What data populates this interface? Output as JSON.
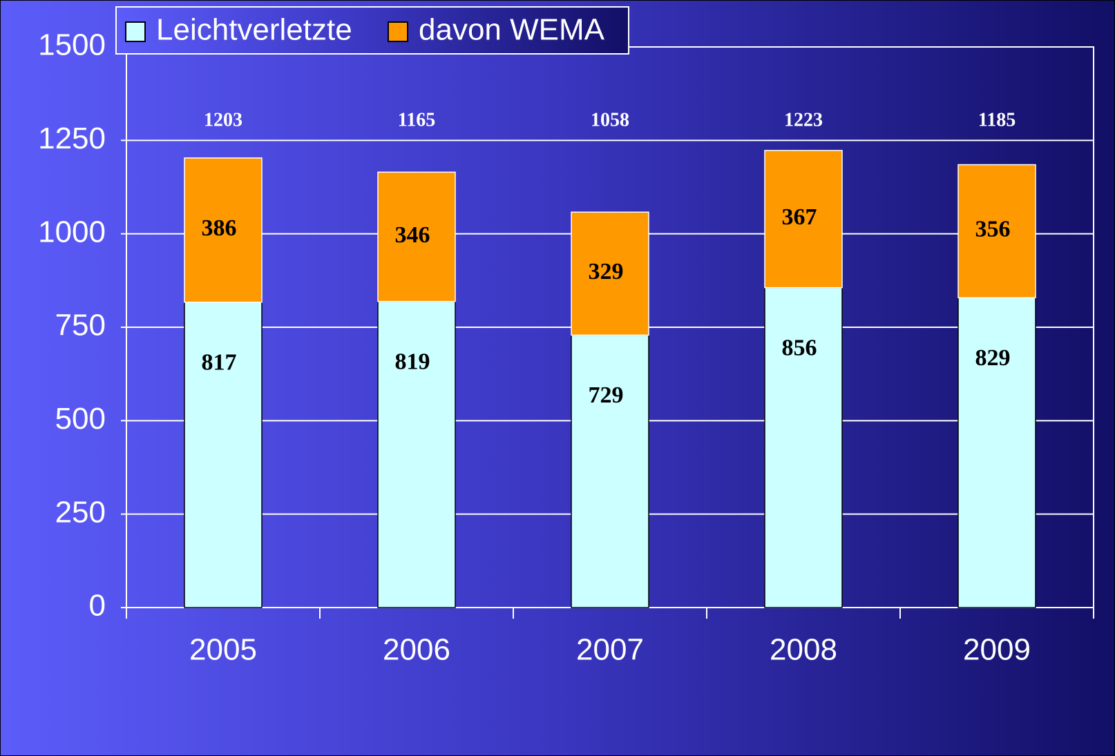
{
  "chart_data": {
    "type": "stacked_bar",
    "categories": [
      "2005",
      "2006",
      "2007",
      "2008",
      "2009"
    ],
    "series": [
      {
        "name": "Leichtverletzte",
        "color": "#ccffff",
        "values": [
          817,
          819,
          729,
          856,
          829
        ]
      },
      {
        "name": "davon WEMA",
        "color": "#ff9900",
        "values": [
          386,
          346,
          329,
          367,
          356
        ]
      }
    ],
    "totals": [
      1203,
      1165,
      1058,
      1223,
      1185
    ],
    "ylim": [
      0,
      1500
    ],
    "yticks": [
      0,
      250,
      500,
      750,
      1000,
      1250,
      1500
    ],
    "grid": true,
    "legend": "top-left"
  }
}
